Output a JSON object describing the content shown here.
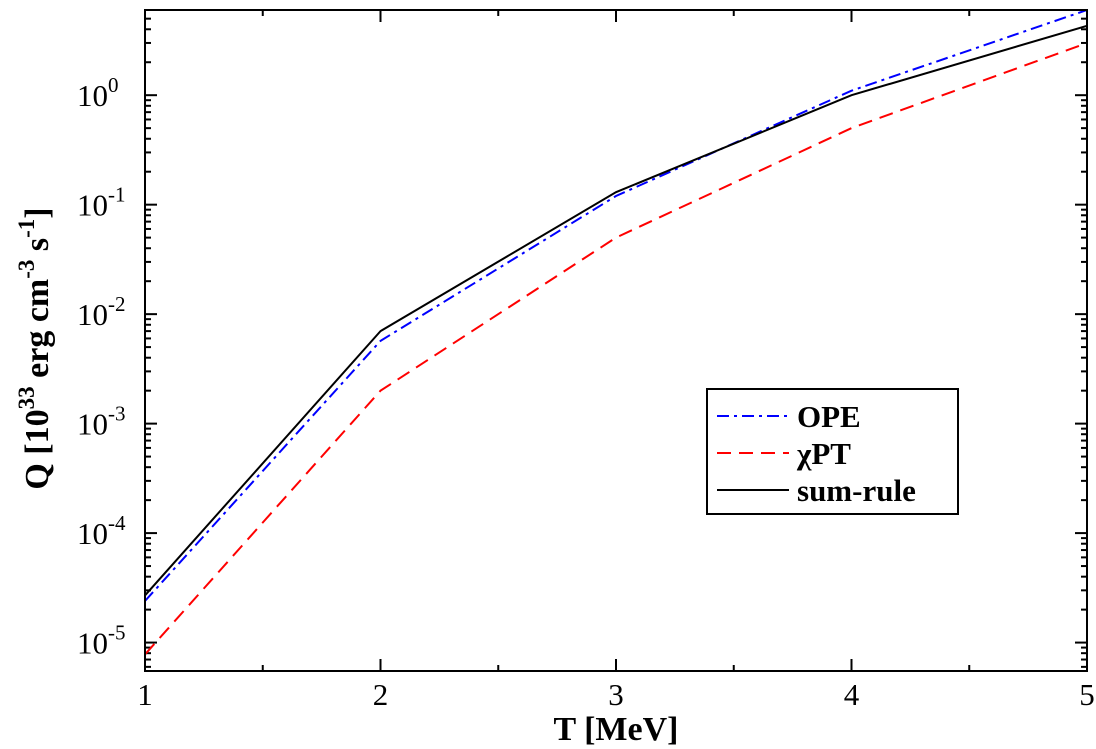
{
  "chart_data": {
    "type": "line",
    "title": "",
    "xlabel": "T [MeV]",
    "ylabel": {
      "base": "Q [10",
      "exp1": "33",
      "mid1": " erg cm",
      "exp2": "-3",
      "mid2": " s",
      "exp3": "-1",
      "end": "]"
    },
    "yscale": "log",
    "xlim": [
      1,
      5
    ],
    "ylim": [
      5.5e-06,
      6.0
    ],
    "xticks": [
      {
        "value": 1,
        "label": "1"
      },
      {
        "value": 2,
        "label": "2"
      },
      {
        "value": 3,
        "label": "3"
      },
      {
        "value": 4,
        "label": "4"
      },
      {
        "value": 5,
        "label": "5"
      }
    ],
    "yticks": [
      {
        "value": 1e-05,
        "base": "10",
        "exp": "-5"
      },
      {
        "value": 0.0001,
        "base": "10",
        "exp": "-4"
      },
      {
        "value": 0.001,
        "base": "10",
        "exp": "-3"
      },
      {
        "value": 0.01,
        "base": "10",
        "exp": "-2"
      },
      {
        "value": 0.1,
        "base": "10",
        "exp": "-1"
      },
      {
        "value": 1,
        "base": "10",
        "exp": "0"
      }
    ],
    "grid": false,
    "legend_position": "right",
    "series": [
      {
        "name": "OPE",
        "color": "#0000ff",
        "dash": "dash-dot",
        "points": [
          [
            1,
            2.4e-05
          ],
          [
            2,
            0.0057
          ],
          [
            3,
            0.12
          ],
          [
            4,
            1.1
          ],
          [
            5,
            6.0
          ]
        ]
      },
      {
        "name": "χPT",
        "color": "#ff0000",
        "dash": "dashed",
        "points": [
          [
            1,
            7.8e-06
          ],
          [
            2,
            0.002
          ],
          [
            3,
            0.05
          ],
          [
            4,
            0.5
          ],
          [
            5,
            3.0
          ]
        ]
      },
      {
        "name": "sum-rule",
        "color": "#000000",
        "dash": "solid",
        "points": [
          [
            1,
            2.7e-05
          ],
          [
            2,
            0.007
          ],
          [
            3,
            0.13
          ],
          [
            4,
            1.0
          ],
          [
            5,
            4.3
          ]
        ]
      }
    ]
  }
}
